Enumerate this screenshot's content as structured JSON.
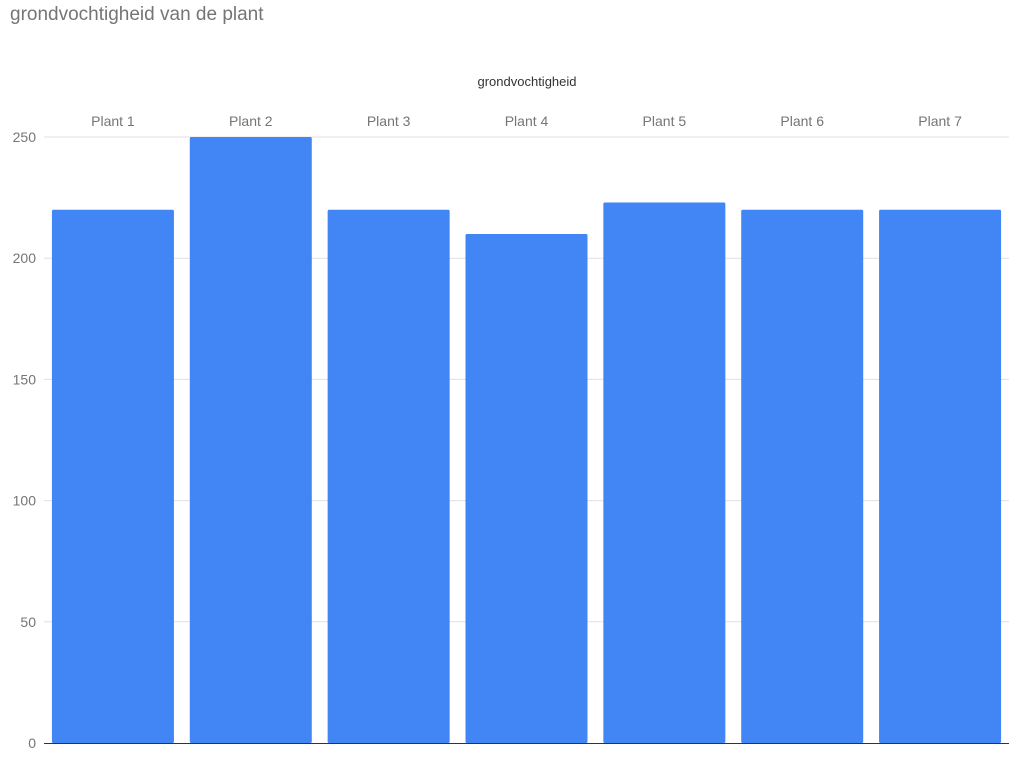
{
  "title": "grondvochtigheid van de plant",
  "chart_data": {
    "type": "bar",
    "title": "grondvochtigheid van de plant",
    "legend": "grondvochtigheid",
    "legend_position": "top",
    "categories": [
      "Plant 1",
      "Plant 2",
      "Plant 3",
      "Plant 4",
      "Plant 5",
      "Plant 6",
      "Plant 7"
    ],
    "category_axis_position": "top",
    "series": [
      {
        "name": "grondvochtigheid",
        "values": [
          220,
          250,
          220,
          210,
          223,
          220,
          220
        ],
        "color": "#4285f4"
      }
    ],
    "yticks": [
      "0",
      "50",
      "100",
      "150",
      "200",
      "250"
    ],
    "ylim": [
      0,
      250
    ],
    "grid": true,
    "gridColor": "#e0e0e0",
    "axisColor": "#333333",
    "labelColor": "#757575"
  }
}
